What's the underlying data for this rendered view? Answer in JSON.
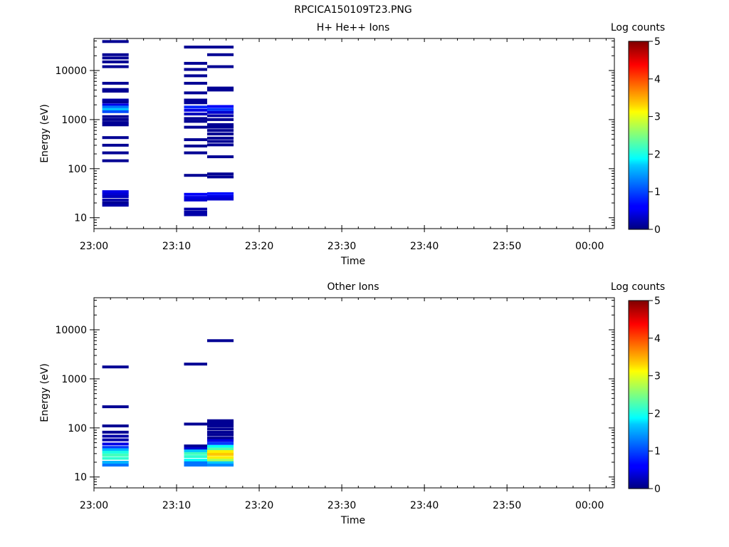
{
  "figure_title": "RPCICA150109T23.PNG",
  "chart_data": [
    {
      "type": "heatmap",
      "title": "H+ He++ Ions",
      "xlabel": "Time",
      "ylabel": "Energy (eV)",
      "yscale": "log",
      "ylim": [
        6,
        45000
      ],
      "xlim": [
        0,
        63
      ],
      "x_ticks": [
        {
          "value": 0,
          "label": "23:00"
        },
        {
          "value": 10,
          "label": "23:10"
        },
        {
          "value": 20,
          "label": "23:20"
        },
        {
          "value": 30,
          "label": "23:30"
        },
        {
          "value": 40,
          "label": "23:40"
        },
        {
          "value": 50,
          "label": "23:50"
        },
        {
          "value": 60,
          "label": "00:00"
        }
      ],
      "y_ticks": [
        {
          "value": 10,
          "label": "10"
        },
        {
          "value": 100,
          "label": "100"
        },
        {
          "value": 1000,
          "label": "1000"
        },
        {
          "value": 10000,
          "label": "10000"
        }
      ],
      "colorbar": {
        "label": "Log counts",
        "min": 0,
        "max": 5,
        "ticks": [
          "0",
          "1",
          "2",
          "3",
          "4",
          "5"
        ]
      },
      "columns": [
        {
          "t0": 1.0,
          "t1": 4.2,
          "cells": [
            {
              "e": 39000,
              "v": 0.1
            },
            {
              "e": 21000,
              "v": 0.1
            },
            {
              "e": 18000,
              "v": 0.1
            },
            {
              "e": 15000,
              "v": 0.1
            },
            {
              "e": 12000,
              "v": 0.1
            },
            {
              "e": 5500,
              "v": 0.1
            },
            {
              "e": 4100,
              "v": 0.1
            },
            {
              "e": 3800,
              "v": 0.1
            },
            {
              "e": 2500,
              "v": 0.2
            },
            {
              "e": 2300,
              "v": 0.1
            },
            {
              "e": 2000,
              "v": 0.5
            },
            {
              "e": 1800,
              "v": 1.2
            },
            {
              "e": 1600,
              "v": 1.6
            },
            {
              "e": 1450,
              "v": 1.0
            },
            {
              "e": 1150,
              "v": 0.1
            },
            {
              "e": 1000,
              "v": 0.1
            },
            {
              "e": 870,
              "v": 0.1
            },
            {
              "e": 780,
              "v": 0.1
            },
            {
              "e": 430,
              "v": 0.1
            },
            {
              "e": 300,
              "v": 0.1
            },
            {
              "e": 210,
              "v": 0.1
            },
            {
              "e": 145,
              "v": 0.1
            },
            {
              "e": 34,
              "v": 0.5
            },
            {
              "e": 30,
              "v": 0.4
            },
            {
              "e": 27,
              "v": 0.3
            },
            {
              "e": 23,
              "v": 0.2
            },
            {
              "e": 20,
              "v": 0.1
            },
            {
              "e": 18,
              "v": 0.2
            }
          ]
        },
        {
          "t0": 10.9,
          "t1": 13.7,
          "cells": [
            {
              "e": 30000,
              "v": 0.1
            },
            {
              "e": 14000,
              "v": 0.1
            },
            {
              "e": 10500,
              "v": 0.1
            },
            {
              "e": 7800,
              "v": 0.1
            },
            {
              "e": 5500,
              "v": 0.1
            },
            {
              "e": 3500,
              "v": 0.1
            },
            {
              "e": 2500,
              "v": 0.1
            },
            {
              "e": 2200,
              "v": 0.1
            },
            {
              "e": 1800,
              "v": 0.8
            },
            {
              "e": 1550,
              "v": 0.5
            },
            {
              "e": 1300,
              "v": 0.3
            },
            {
              "e": 1050,
              "v": 0.1
            },
            {
              "e": 920,
              "v": 0.1
            },
            {
              "e": 700,
              "v": 0.1
            },
            {
              "e": 390,
              "v": 0.1
            },
            {
              "e": 290,
              "v": 0.1
            },
            {
              "e": 210,
              "v": 0.1
            },
            {
              "e": 73,
              "v": 0.1
            },
            {
              "e": 30,
              "v": 0.6
            },
            {
              "e": 26,
              "v": 0.5
            },
            {
              "e": 23,
              "v": 0.4
            },
            {
              "e": 15,
              "v": 0.2
            },
            {
              "e": 13,
              "v": 0.2
            },
            {
              "e": 11.5,
              "v": 0.2
            }
          ]
        },
        {
          "t0": 13.7,
          "t1": 16.9,
          "cells": [
            {
              "e": 30000,
              "v": 0.1
            },
            {
              "e": 21000,
              "v": 0.1
            },
            {
              "e": 12000,
              "v": 0.1
            },
            {
              "e": 4400,
              "v": 0.1
            },
            {
              "e": 4000,
              "v": 0.1
            },
            {
              "e": 1850,
              "v": 0.6
            },
            {
              "e": 1600,
              "v": 0.9
            },
            {
              "e": 1400,
              "v": 0.4
            },
            {
              "e": 1200,
              "v": 0.2
            },
            {
              "e": 1000,
              "v": 0.1
            },
            {
              "e": 790,
              "v": 0.1
            },
            {
              "e": 700,
              "v": 0.1
            },
            {
              "e": 600,
              "v": 0.1
            },
            {
              "e": 510,
              "v": 0.1
            },
            {
              "e": 420,
              "v": 0.1
            },
            {
              "e": 360,
              "v": 0.1
            },
            {
              "e": 305,
              "v": 0.1
            },
            {
              "e": 175,
              "v": 0.1
            },
            {
              "e": 78,
              "v": 0.1
            },
            {
              "e": 68,
              "v": 0.1
            },
            {
              "e": 31,
              "v": 0.7
            },
            {
              "e": 27,
              "v": 0.5
            },
            {
              "e": 24,
              "v": 0.4
            }
          ]
        }
      ]
    },
    {
      "type": "heatmap",
      "title": "Other Ions",
      "xlabel": "Time",
      "ylabel": "Energy (eV)",
      "yscale": "log",
      "ylim": [
        6,
        45000
      ],
      "xlim": [
        0,
        63
      ],
      "x_ticks": [
        {
          "value": 0,
          "label": "23:00"
        },
        {
          "value": 10,
          "label": "23:10"
        },
        {
          "value": 20,
          "label": "23:20"
        },
        {
          "value": 30,
          "label": "23:30"
        },
        {
          "value": 40,
          "label": "23:40"
        },
        {
          "value": 50,
          "label": "23:50"
        },
        {
          "value": 60,
          "label": "00:00"
        }
      ],
      "y_ticks": [
        {
          "value": 10,
          "label": "10"
        },
        {
          "value": 100,
          "label": "100"
        },
        {
          "value": 1000,
          "label": "1000"
        },
        {
          "value": 10000,
          "label": "10000"
        }
      ],
      "colorbar": {
        "label": "Log counts",
        "min": 0,
        "max": 5,
        "ticks": [
          "0",
          "1",
          "2",
          "3",
          "4",
          "5"
        ]
      },
      "columns": [
        {
          "t0": 1.0,
          "t1": 4.2,
          "cells": [
            {
              "e": 1750,
              "v": 0.1
            },
            {
              "e": 270,
              "v": 0.1
            },
            {
              "e": 110,
              "v": 0.1
            },
            {
              "e": 82,
              "v": 0.1
            },
            {
              "e": 68,
              "v": 0.2
            },
            {
              "e": 57,
              "v": 0.2
            },
            {
              "e": 47,
              "v": 0.5
            },
            {
              "e": 40,
              "v": 0.9
            },
            {
              "e": 36,
              "v": 1.5
            },
            {
              "e": 32,
              "v": 2.0
            },
            {
              "e": 28,
              "v": 2.2
            },
            {
              "e": 24,
              "v": 2.1
            },
            {
              "e": 20,
              "v": 1.5
            },
            {
              "e": 17.5,
              "v": 1.2
            }
          ]
        },
        {
          "t0": 10.9,
          "t1": 13.7,
          "cells": [
            {
              "e": 2000,
              "v": 0.1
            },
            {
              "e": 120,
              "v": 0.1
            },
            {
              "e": 43,
              "v": 0.1
            },
            {
              "e": 38,
              "v": 0.4
            },
            {
              "e": 34,
              "v": 1.6
            },
            {
              "e": 30,
              "v": 2.2
            },
            {
              "e": 26,
              "v": 2.1
            },
            {
              "e": 22,
              "v": 1.9
            },
            {
              "e": 19.5,
              "v": 1.2
            },
            {
              "e": 17.5,
              "v": 1.2
            }
          ]
        },
        {
          "t0": 13.7,
          "t1": 16.9,
          "cells": [
            {
              "e": 6000,
              "v": 0.1
            },
            {
              "e": 140,
              "v": 0.1
            },
            {
              "e": 125,
              "v": 0.1
            },
            {
              "e": 110,
              "v": 0.1
            },
            {
              "e": 95,
              "v": 0.1
            },
            {
              "e": 82,
              "v": 0.1
            },
            {
              "e": 72,
              "v": 0.1
            },
            {
              "e": 62,
              "v": 0.1
            },
            {
              "e": 55,
              "v": 0.5
            },
            {
              "e": 48,
              "v": 0.9
            },
            {
              "e": 42,
              "v": 1.9
            },
            {
              "e": 37,
              "v": 2.3
            },
            {
              "e": 33,
              "v": 3.2
            },
            {
              "e": 29,
              "v": 3.4
            },
            {
              "e": 25,
              "v": 3.2
            },
            {
              "e": 22,
              "v": 2.7
            },
            {
              "e": 19.5,
              "v": 1.6
            },
            {
              "e": 17.5,
              "v": 1.3
            }
          ]
        }
      ]
    }
  ]
}
